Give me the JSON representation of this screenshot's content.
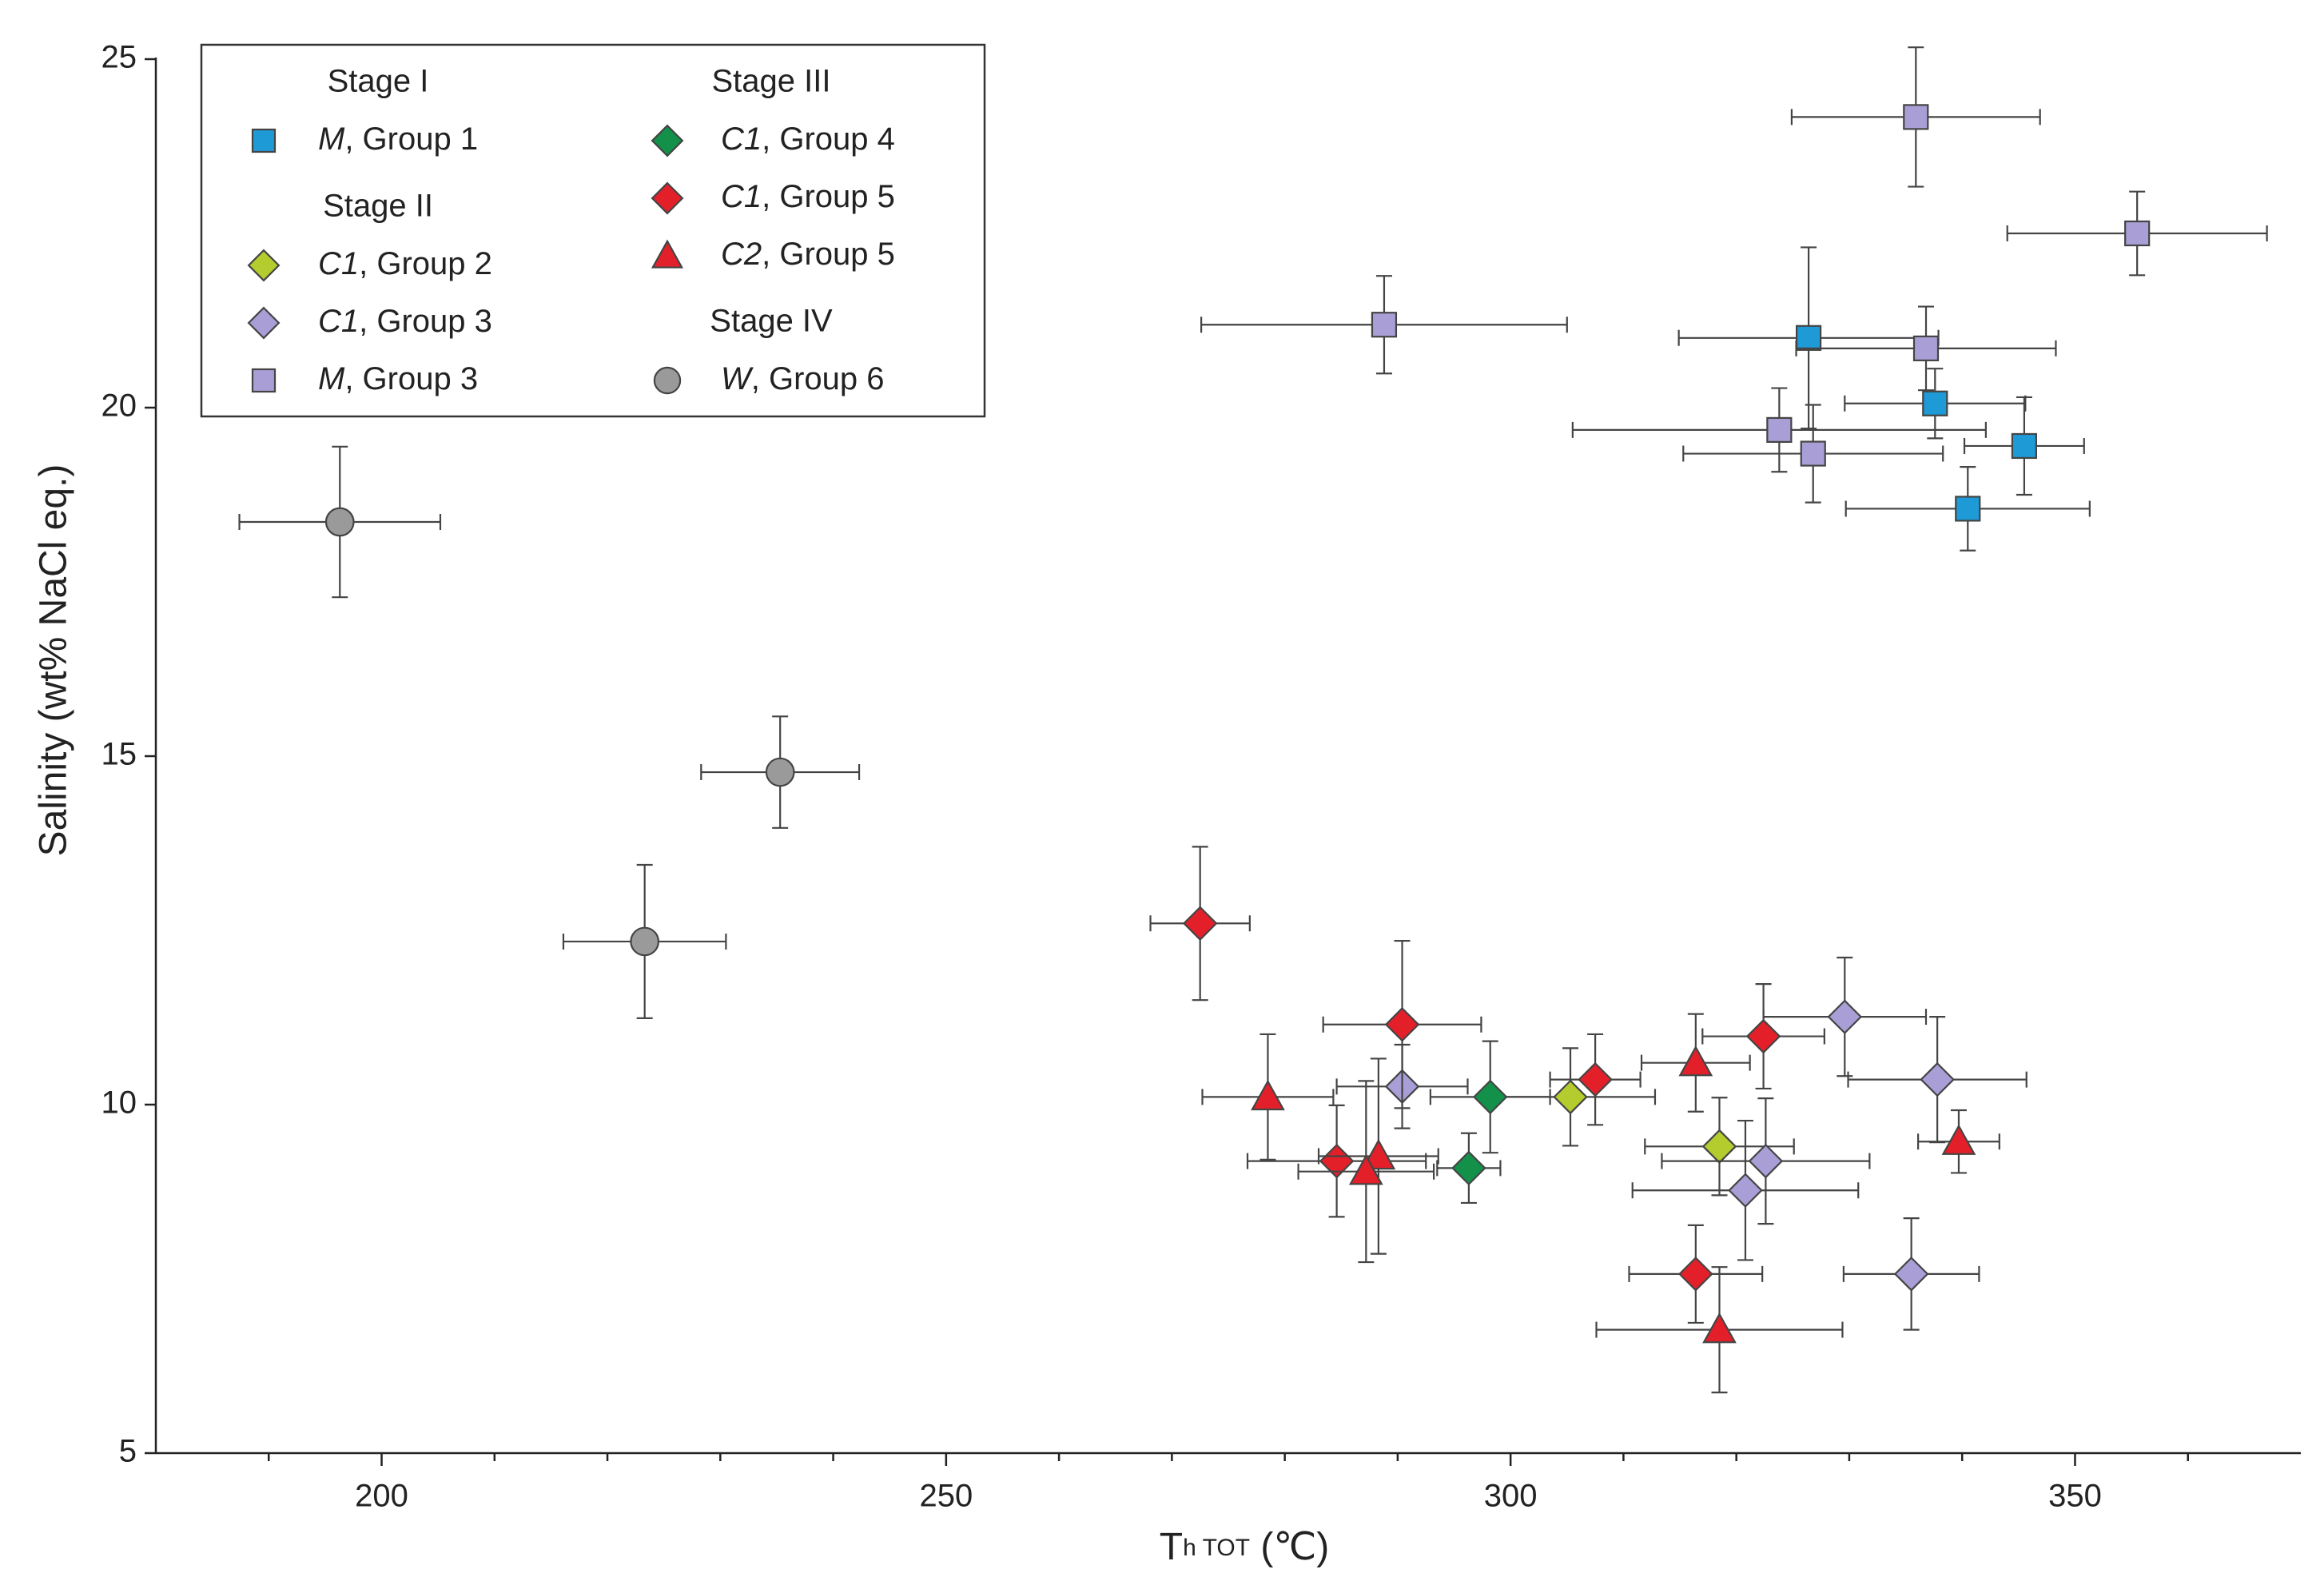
{
  "chart_data": {
    "type": "scatter",
    "x_label": "Th TOT (℃)",
    "y_label": "Salinity (wt% NaCl eq.)",
    "xlim": [
      180,
      370
    ],
    "ylim": [
      5,
      25
    ],
    "xticks": [
      200,
      250,
      300,
      350
    ],
    "xminorticks": [
      190,
      210,
      220,
      230,
      240,
      260,
      270,
      280,
      290,
      310,
      320,
      330,
      340,
      360
    ],
    "yticks": [
      5,
      10,
      15,
      20,
      25
    ],
    "series": [
      {
        "name": "M, Group 1",
        "stage": "Stage I",
        "marker": "square",
        "color": "#1e9ad6",
        "x": [
          326.4,
          337.6,
          345.5,
          340.5
        ],
        "values": [
          21.0,
          20.06,
          19.45,
          18.55
        ],
        "xerr": [
          11.5,
          8,
          5.3,
          10.8
        ],
        "yerr": [
          1.3,
          0.5,
          0.7,
          0.6
        ]
      },
      {
        "name": "C1, Group 2",
        "stage": "Stage II",
        "marker": "diamond",
        "color": "#b5cc2e",
        "x": [
          305.3,
          318.5
        ],
        "values": [
          10.11,
          9.4
        ],
        "xerr": [
          7.5,
          6.6
        ],
        "yerr": [
          0.7,
          0.7
        ]
      },
      {
        "name": "C1, Group 3",
        "marker": "diamond",
        "color": "#a99fd6",
        "x": [
          329.6,
          337.8,
          290.4,
          322.6,
          320.8,
          335.5
        ],
        "values": [
          11.26,
          10.36,
          10.26,
          9.19,
          8.77,
          7.57
        ],
        "xerr": [
          7.2,
          7.9,
          5.8,
          9.2,
          10,
          6
        ],
        "yerr": [
          0.85,
          0.9,
          0.6,
          0.9,
          1.0,
          0.8
        ]
      },
      {
        "name": "M, Group 3",
        "marker": "square",
        "color": "#a99fd6",
        "x": [
          335.9,
          355.5,
          288.8,
          336.8,
          323.8,
          326.8
        ],
        "values": [
          24.17,
          22.5,
          21.19,
          20.85,
          19.68,
          19.34
        ],
        "xerr": [
          11,
          11.5,
          16.2,
          11.5,
          18.3,
          11.5
        ],
        "yerr": [
          1.0,
          0.6,
          0.7,
          0.6,
          0.6,
          0.7
        ]
      },
      {
        "name": "C1, Group 4",
        "stage": "Stage III",
        "marker": "diamond",
        "color": "#13914a",
        "x": [
          298.2,
          296.3
        ],
        "values": [
          10.11,
          9.09
        ],
        "xerr": [
          5.3,
          2.8
        ],
        "yerr": [
          0.8,
          0.5
        ]
      },
      {
        "name": "C1, Group 5",
        "marker": "diamond",
        "color": "#e3202a",
        "x": [
          272.5,
          290.4,
          307.5,
          322.4,
          284.6,
          316.4
        ],
        "values": [
          12.6,
          11.15,
          10.36,
          10.98,
          9.19,
          7.57
        ],
        "xerr": [
          4.4,
          7,
          4,
          5.4,
          7.9,
          5.9
        ],
        "yerr": [
          1.1,
          1.2,
          0.65,
          0.75,
          0.8,
          0.7
        ]
      },
      {
        "name": "C2, Group 5",
        "marker": "triangle",
        "color": "#e3202a",
        "x": [
          278.5,
          288.3,
          287.2,
          316.4,
          339.7,
          318.5
        ],
        "values": [
          10.11,
          9.26,
          9.04,
          10.6,
          9.47,
          6.77
        ],
        "xerr": [
          5.8,
          5.3,
          6,
          4.8,
          3.6,
          10.9
        ],
        "yerr": [
          0.9,
          1.4,
          1.3,
          0.7,
          0.45,
          0.9
        ]
      },
      {
        "name": "W, Group 6",
        "stage": "Stage IV",
        "marker": "circle",
        "color": "#9a9a9a",
        "x": [
          196.3,
          235.3,
          223.3
        ],
        "values": [
          18.36,
          14.77,
          12.34
        ],
        "xerr": [
          8.9,
          7,
          7.2
        ],
        "yerr": [
          1.08,
          0.8,
          1.1
        ]
      }
    ]
  }
}
